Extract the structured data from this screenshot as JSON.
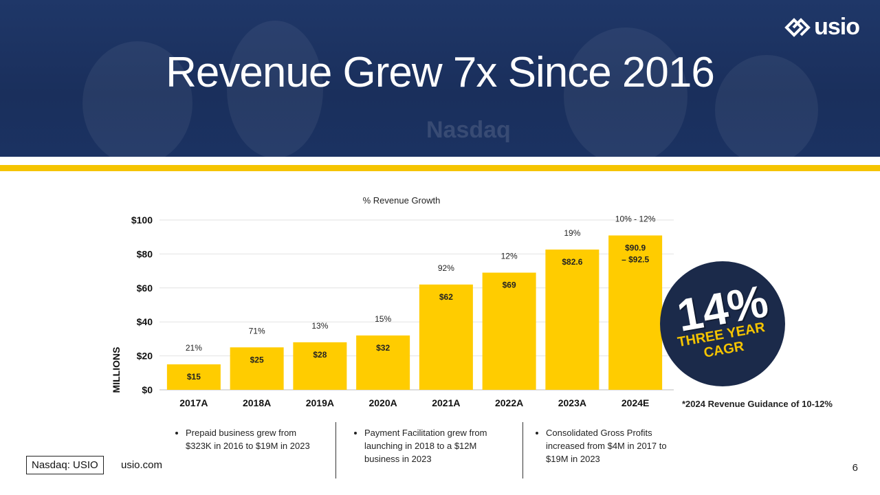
{
  "header": {
    "title": "Revenue Grew 7x Since 2016",
    "logo_text": "usio",
    "background_text": "Nasdaq"
  },
  "chart_data": {
    "type": "bar",
    "title": "% Revenue Growth",
    "ylabel": "MILLIONS",
    "xlabel": "",
    "ylim": [
      0,
      100
    ],
    "yticks": [
      0,
      20,
      40,
      60,
      80,
      100
    ],
    "ytick_labels": [
      "$0",
      "$20",
      "$40",
      "$60",
      "$80",
      "$100"
    ],
    "categories": [
      "2017A",
      "2018A",
      "2019A",
      "2020A",
      "2021A",
      "2022A",
      "2023A",
      "2024E"
    ],
    "values": [
      15,
      25,
      28,
      32,
      62,
      69,
      82.6,
      90.9
    ],
    "value_labels": [
      "$15",
      "$25",
      "$28",
      "$32",
      "$62",
      "$69",
      "$82.6",
      "$90.9\n– $92.5"
    ],
    "growth_labels": [
      "21%",
      "71%",
      "13%",
      "15%",
      "92%",
      "12%",
      "19%",
      "10% - 12%"
    ],
    "bar_color": "#ffcc00",
    "grid": true
  },
  "badge": {
    "big": "14%",
    "line1": "THREE YEAR",
    "line2": "CAGR"
  },
  "guidance": "*2024 Revenue  Guidance of 10-12%",
  "notes": [
    "Prepaid business grew from $323K in 2016 to $19M in 2023",
    "Payment Facilitation grew from launching in 2018 to a $12M business in 2023",
    "Consolidated Gross Profits increased from $4M in 2017 to $19M in 2023"
  ],
  "footer": {
    "ticker": "Nasdaq: USIO",
    "site": "usio.com",
    "page": "6"
  },
  "colors": {
    "navy": "#1b2a4a",
    "yellow": "#f5c400"
  }
}
